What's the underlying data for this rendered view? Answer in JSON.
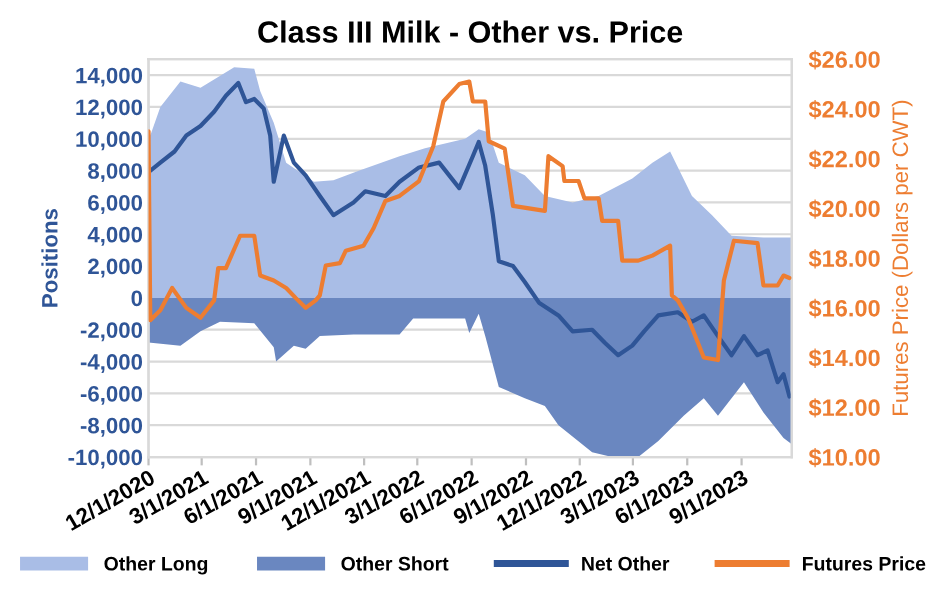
{
  "chart_data": {
    "type": "area",
    "title": "Class III Milk - Other vs. Price",
    "ylabel": "Positions",
    "y2label": "Futures Price (Dollars per CWT)",
    "xlim": [
      "2020-12-01",
      "2023-11-25"
    ],
    "xticks": [
      {
        "value": "2020-12-01",
        "label": "12/1/2020"
      },
      {
        "value": "2021-03-01",
        "label": "3/1/2021"
      },
      {
        "value": "2021-06-01",
        "label": "6/1/2021"
      },
      {
        "value": "2021-09-01",
        "label": "9/1/2021"
      },
      {
        "value": "2021-12-01",
        "label": "12/1/2021"
      },
      {
        "value": "2022-03-01",
        "label": "3/1/2022"
      },
      {
        "value": "2022-06-01",
        "label": "6/1/2022"
      },
      {
        "value": "2022-09-01",
        "label": "9/1/2022"
      },
      {
        "value": "2022-12-01",
        "label": "12/1/2022"
      },
      {
        "value": "2023-03-01",
        "label": "3/1/2023"
      },
      {
        "value": "2023-06-01",
        "label": "6/1/2023"
      },
      {
        "value": "2023-09-01",
        "label": "9/1/2023"
      }
    ],
    "ylim": [
      -10000,
      15000
    ],
    "yticks": [
      {
        "value": -10000,
        "label": "-10,000"
      },
      {
        "value": -8000,
        "label": "-8,000"
      },
      {
        "value": -6000,
        "label": "-6,000"
      },
      {
        "value": -4000,
        "label": "-4,000"
      },
      {
        "value": -2000,
        "label": "-2,000"
      },
      0,
      {
        "value": 2000,
        "label": "2,000"
      },
      {
        "value": 4000,
        "label": "4,000"
      },
      {
        "value": 6000,
        "label": "6,000"
      },
      {
        "value": 8000,
        "label": "8,000"
      },
      {
        "value": 10000,
        "label": "10,000"
      },
      {
        "value": 12000,
        "label": "12,000"
      },
      {
        "value": 14000,
        "label": "14,000"
      }
    ],
    "y2lim": [
      10,
      26
    ],
    "y2ticks": [
      {
        "value": 10,
        "label": "$10.00"
      },
      {
        "value": 12,
        "label": "$12.00"
      },
      {
        "value": 14,
        "label": "$14.00"
      },
      {
        "value": 16,
        "label": "$16.00"
      },
      {
        "value": 18,
        "label": "$18.00"
      },
      {
        "value": 20,
        "label": "$20.00"
      },
      {
        "value": 22,
        "label": "$22.00"
      },
      {
        "value": 24,
        "label": "$24.00"
      },
      {
        "value": 26,
        "label": "$26.00"
      }
    ],
    "grid": "y",
    "legend": "bottom",
    "series": [
      {
        "name": "Other Long",
        "color": "#a9bde6",
        "x": [
          "2020-12-01",
          "2020-12-04",
          "2020-12-21",
          "2021-01-24",
          "2021-02-27",
          "2021-04-25",
          "2021-05-29",
          "2021-06-08",
          "2021-07-01",
          "2021-07-22",
          "2021-09-07",
          "2021-10-10",
          "2021-11-23",
          "2022-01-30",
          "2022-03-14",
          "2022-05-21",
          "2022-06-13",
          "2022-06-30",
          "2022-07-17",
          "2022-08-30",
          "2022-10-03",
          "2022-11-19",
          "2023-01-02",
          "2023-02-28",
          "2023-04-03",
          "2023-05-03",
          "2023-06-09",
          "2023-07-13",
          "2023-08-15",
          "2023-10-08",
          "2023-11-25"
        ],
        "values": [
          12500,
          10200,
          12000,
          13600,
          13200,
          14500,
          14400,
          13000,
          11000,
          8500,
          7300,
          7400,
          8000,
          8900,
          9400,
          10000,
          10600,
          10400,
          8500,
          7700,
          6400,
          6000,
          6400,
          7500,
          8500,
          9200,
          6400,
          5200,
          3900,
          3800,
          3800
        ]
      },
      {
        "name": "Other Short",
        "color": "#6a87c0",
        "x": [
          "2020-12-01",
          "2021-01-24",
          "2021-02-27",
          "2021-04-01",
          "2021-05-29",
          "2021-07-01",
          "2021-07-05",
          "2021-08-04",
          "2021-08-24",
          "2021-09-17",
          "2021-11-13",
          "2022-01-30",
          "2022-02-22",
          "2022-05-21",
          "2022-05-28",
          "2022-06-13",
          "2022-06-24",
          "2022-07-17",
          "2022-08-30",
          "2022-10-03",
          "2022-10-26",
          "2022-12-22",
          "2023-01-25",
          "2023-03-10",
          "2023-04-13",
          "2023-05-26",
          "2023-06-29",
          "2023-07-23",
          "2023-09-05",
          "2023-10-08",
          "2023-10-25",
          "2023-11-11",
          "2023-11-25"
        ],
        "values": [
          -2800,
          -3000,
          -2100,
          -1500,
          -1600,
          -3100,
          -4000,
          -3000,
          -3200,
          -2400,
          -2300,
          -2300,
          -1300,
          -1300,
          -2200,
          -1000,
          -2400,
          -5600,
          -6300,
          -6800,
          -8000,
          -9700,
          -10000,
          -10000,
          -9000,
          -7400,
          -6300,
          -7400,
          -5300,
          -7200,
          -8000,
          -8800,
          -9200
        ]
      },
      {
        "name": "Net Other",
        "type": "line",
        "color": "#2f5597",
        "x": [
          "2020-12-01",
          "2020-12-21",
          "2021-01-14",
          "2021-02-03",
          "2021-02-27",
          "2021-03-22",
          "2021-04-11",
          "2021-05-02",
          "2021-05-15",
          "2021-05-29",
          "2021-06-14",
          "2021-06-25",
          "2021-07-01",
          "2021-07-18",
          "2021-08-04",
          "2021-08-24",
          "2021-09-17",
          "2021-10-10",
          "2021-11-13",
          "2021-12-03",
          "2022-01-06",
          "2022-01-30",
          "2022-03-04",
          "2022-04-07",
          "2022-05-11",
          "2022-06-03",
          "2022-06-13",
          "2022-06-24",
          "2022-07-07",
          "2022-07-17",
          "2022-08-10",
          "2022-08-30",
          "2022-09-23",
          "2022-10-26",
          "2022-11-19",
          "2022-12-22",
          "2023-01-12",
          "2023-02-04",
          "2023-02-28",
          "2023-03-20",
          "2023-04-13",
          "2023-05-16",
          "2023-06-09",
          "2023-06-29",
          "2023-07-23",
          "2023-08-15",
          "2023-09-05",
          "2023-09-28",
          "2023-10-15",
          "2023-11-01",
          "2023-11-11",
          "2023-11-21"
        ],
        "values": [
          7900,
          8500,
          9200,
          10200,
          10800,
          11700,
          12700,
          13500,
          12300,
          12500,
          11900,
          10200,
          7300,
          10200,
          8500,
          7700,
          6400,
          5200,
          6000,
          6700,
          6400,
          7300,
          8200,
          8500,
          6900,
          8900,
          9800,
          8300,
          5200,
          2300,
          2000,
          1000,
          -300,
          -1100,
          -2100,
          -2000,
          -2800,
          -3600,
          -3000,
          -2100,
          -1100,
          -900,
          -1500,
          -1100,
          -2400,
          -3600,
          -2400,
          -3600,
          -3300,
          -5300,
          -4800,
          -6200
        ]
      },
      {
        "name": "Futures Price",
        "type": "line",
        "axis": "y2",
        "color": "#ed7d31",
        "x": [
          "2020-12-01",
          "2020-12-04",
          "2020-12-21",
          "2021-01-10",
          "2021-02-03",
          "2021-02-27",
          "2021-03-22",
          "2021-03-29",
          "2021-04-11",
          "2021-05-05",
          "2021-05-29",
          "2021-06-08",
          "2021-07-01",
          "2021-07-22",
          "2021-08-07",
          "2021-08-24",
          "2021-09-10",
          "2021-09-17",
          "2021-09-27",
          "2021-10-21",
          "2021-10-31",
          "2021-11-30",
          "2021-12-17",
          "2022-01-06",
          "2022-01-30",
          "2022-03-04",
          "2022-03-28",
          "2022-04-14",
          "2022-05-11",
          "2022-05-28",
          "2022-06-03",
          "2022-06-24",
          "2022-06-30",
          "2022-07-27",
          "2022-08-10",
          "2022-10-03",
          "2022-10-09",
          "2022-11-02",
          "2022-11-05",
          "2022-11-29",
          "2022-12-09",
          "2023-01-02",
          "2023-01-08",
          "2023-02-04",
          "2023-02-11",
          "2023-03-10",
          "2023-04-03",
          "2023-05-03",
          "2023-05-06",
          "2023-05-16",
          "2023-06-02",
          "2023-06-09",
          "2023-06-29",
          "2023-07-23",
          "2023-08-02",
          "2023-08-19",
          "2023-09-28",
          "2023-10-08",
          "2023-11-01",
          "2023-11-11",
          "2023-11-21"
        ],
        "values": [
          23.1,
          15.5,
          15.9,
          16.8,
          16.0,
          15.6,
          16.3,
          17.6,
          17.6,
          18.9,
          18.9,
          17.3,
          17.1,
          16.8,
          16.4,
          16.0,
          16.3,
          16.5,
          17.7,
          17.8,
          18.3,
          18.5,
          19.2,
          20.3,
          20.5,
          21.1,
          22.5,
          24.3,
          25.0,
          25.1,
          24.3,
          24.3,
          22.7,
          22.4,
          20.1,
          19.9,
          22.1,
          21.7,
          21.1,
          21.1,
          20.4,
          20.4,
          19.5,
          19.5,
          17.9,
          17.9,
          18.1,
          18.5,
          16.5,
          16.3,
          15.6,
          15.2,
          14.0,
          13.9,
          17.1,
          18.7,
          18.6,
          16.9,
          16.9,
          17.3,
          17.2
        ]
      }
    ]
  }
}
